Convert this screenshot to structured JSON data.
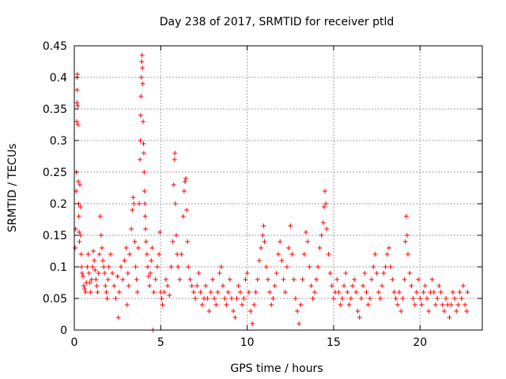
{
  "chart_data": {
    "type": "scatter",
    "title": "Day 238 of 2017, SRMTID for receiver ptld",
    "xlabel": "GPS time / hours",
    "ylabel": "SRMTID / TECUs",
    "xlim": [
      0,
      23.6
    ],
    "ylim": [
      0,
      0.45
    ],
    "xticks": [
      0,
      5,
      10,
      15,
      20
    ],
    "xtick_labels": [
      "0",
      "5",
      "10",
      "15",
      "20"
    ],
    "yticks": [
      0,
      0.05,
      0.1,
      0.15,
      0.2,
      0.25,
      0.3,
      0.35,
      0.4,
      0.45
    ],
    "ytick_labels": [
      "0",
      "0.05",
      "0.1",
      "0.15",
      "0.2",
      "0.25",
      "0.3",
      "0.35",
      "0.4",
      "0.45"
    ],
    "grid": true,
    "marker": "+",
    "color": "#ff0000",
    "series": [
      {
        "name": "SRMTID",
        "points": [
          [
            0.05,
            0.13
          ],
          [
            0.08,
            0.16
          ],
          [
            0.1,
            0.22
          ],
          [
            0.12,
            0.25
          ],
          [
            0.14,
            0.33
          ],
          [
            0.15,
            0.36
          ],
          [
            0.16,
            0.38
          ],
          [
            0.17,
            0.4
          ],
          [
            0.18,
            0.405
          ],
          [
            0.2,
            0.355
          ],
          [
            0.22,
            0.325
          ],
          [
            0.23,
            0.235
          ],
          [
            0.25,
            0.2
          ],
          [
            0.26,
            0.18
          ],
          [
            0.28,
            0.155
          ],
          [
            0.3,
            0.14
          ],
          [
            0.32,
            0.23
          ],
          [
            0.34,
            0.195
          ],
          [
            0.36,
            0.15
          ],
          [
            0.4,
            0.12
          ],
          [
            0.42,
            0.1
          ],
          [
            0.45,
            0.09
          ],
          [
            0.5,
            0.085
          ],
          [
            0.55,
            0.07
          ],
          [
            0.6,
            0.065
          ],
          [
            0.65,
            0.06
          ],
          [
            0.7,
            0.075
          ],
          [
            0.75,
            0.1
          ],
          [
            0.8,
            0.12
          ],
          [
            0.85,
            0.09
          ],
          [
            0.9,
            0.075
          ],
          [
            0.95,
            0.06
          ],
          [
            1.0,
            0.08
          ],
          [
            1.05,
            0.1
          ],
          [
            1.1,
            0.125
          ],
          [
            1.15,
            0.11
          ],
          [
            1.2,
            0.095
          ],
          [
            1.25,
            0.08
          ],
          [
            1.3,
            0.07
          ],
          [
            1.35,
            0.06
          ],
          [
            1.4,
            0.09
          ],
          [
            1.45,
            0.12
          ],
          [
            1.5,
            0.18
          ],
          [
            1.55,
            0.15
          ],
          [
            1.6,
            0.13
          ],
          [
            1.65,
            0.11
          ],
          [
            1.7,
            0.1
          ],
          [
            1.75,
            0.09
          ],
          [
            1.8,
            0.07
          ],
          [
            1.85,
            0.06
          ],
          [
            1.9,
            0.05
          ],
          [
            1.95,
            0.08
          ],
          [
            2.0,
            0.1
          ],
          [
            2.1,
            0.12
          ],
          [
            2.2,
            0.09
          ],
          [
            2.3,
            0.07
          ],
          [
            2.4,
            0.05
          ],
          [
            2.5,
            0.085
          ],
          [
            2.55,
            0.02
          ],
          [
            2.6,
            0.06
          ],
          [
            2.7,
            0.1
          ],
          [
            2.8,
            0.08
          ],
          [
            2.9,
            0.11
          ],
          [
            3.0,
            0.13
          ],
          [
            3.05,
            0.04
          ],
          [
            3.1,
            0.09
          ],
          [
            3.15,
            0.07
          ],
          [
            3.2,
            0.12
          ],
          [
            3.3,
            0.16
          ],
          [
            3.35,
            0.19
          ],
          [
            3.4,
            0.21
          ],
          [
            3.45,
            0.2
          ],
          [
            3.5,
            0.14
          ],
          [
            3.55,
            0.1
          ],
          [
            3.6,
            0.08
          ],
          [
            3.65,
            0.06
          ],
          [
            3.7,
            0.13
          ],
          [
            3.75,
            0.2
          ],
          [
            3.8,
            0.27
          ],
          [
            3.82,
            0.3
          ],
          [
            3.84,
            0.34
          ],
          [
            3.86,
            0.37
          ],
          [
            3.88,
            0.4
          ],
          [
            3.9,
            0.425
          ],
          [
            3.92,
            0.435
          ],
          [
            3.94,
            0.415
          ],
          [
            3.96,
            0.39
          ],
          [
            3.98,
            0.33
          ],
          [
            4.0,
            0.295
          ],
          [
            4.02,
            0.28
          ],
          [
            4.04,
            0.25
          ],
          [
            4.06,
            0.22
          ],
          [
            4.08,
            0.2
          ],
          [
            4.1,
            0.18
          ],
          [
            4.12,
            0.16
          ],
          [
            4.15,
            0.14
          ],
          [
            4.2,
            0.12
          ],
          [
            4.25,
            0.1
          ],
          [
            4.3,
            0.085
          ],
          [
            4.35,
            0.07
          ],
          [
            4.4,
            0.09
          ],
          [
            4.45,
            0.11
          ],
          [
            4.5,
            0.13
          ],
          [
            4.55,
            0.0
          ],
          [
            4.6,
            0.06
          ],
          [
            4.7,
            0.08
          ],
          [
            4.8,
            0.1
          ],
          [
            4.9,
            0.12
          ],
          [
            4.95,
            0.155
          ],
          [
            5.0,
            0.06
          ],
          [
            5.05,
            0.05
          ],
          [
            5.1,
            0.04
          ],
          [
            5.2,
            0.06
          ],
          [
            5.3,
            0.08
          ],
          [
            5.4,
            0.07
          ],
          [
            5.5,
            0.055
          ],
          [
            5.6,
            0.1
          ],
          [
            5.7,
            0.14
          ],
          [
            5.75,
            0.23
          ],
          [
            5.8,
            0.27
          ],
          [
            5.82,
            0.28
          ],
          [
            5.85,
            0.2
          ],
          [
            5.9,
            0.15
          ],
          [
            5.95,
            0.12
          ],
          [
            6.0,
            0.1
          ],
          [
            6.1,
            0.08
          ],
          [
            6.2,
            0.12
          ],
          [
            6.3,
            0.18
          ],
          [
            6.35,
            0.22
          ],
          [
            6.4,
            0.235
          ],
          [
            6.45,
            0.24
          ],
          [
            6.5,
            0.19
          ],
          [
            6.55,
            0.14
          ],
          [
            6.6,
            0.1
          ],
          [
            6.7,
            0.08
          ],
          [
            6.8,
            0.07
          ],
          [
            6.9,
            0.06
          ],
          [
            7.0,
            0.05
          ],
          [
            7.1,
            0.07
          ],
          [
            7.2,
            0.09
          ],
          [
            7.3,
            0.06
          ],
          [
            7.4,
            0.04
          ],
          [
            7.5,
            0.05
          ],
          [
            7.6,
            0.07
          ],
          [
            7.7,
            0.05
          ],
          [
            7.8,
            0.03
          ],
          [
            7.9,
            0.06
          ],
          [
            8.0,
            0.08
          ],
          [
            8.1,
            0.05
          ],
          [
            8.2,
            0.04
          ],
          [
            8.3,
            0.06
          ],
          [
            8.4,
            0.09
          ],
          [
            8.5,
            0.1
          ],
          [
            8.6,
            0.07
          ],
          [
            8.7,
            0.05
          ],
          [
            8.8,
            0.04
          ],
          [
            8.9,
            0.06
          ],
          [
            9.0,
            0.08
          ],
          [
            9.1,
            0.05
          ],
          [
            9.2,
            0.03
          ],
          [
            9.3,
            0.02
          ],
          [
            9.4,
            0.05
          ],
          [
            9.5,
            0.07
          ],
          [
            9.6,
            0.06
          ],
          [
            9.7,
            0.04
          ],
          [
            9.8,
            0.05
          ],
          [
            9.9,
            0.08
          ],
          [
            10.0,
            0.09
          ],
          [
            10.1,
            0.06
          ],
          [
            10.2,
            0.03
          ],
          [
            10.3,
            0.01
          ],
          [
            10.4,
            0.04
          ],
          [
            10.5,
            0.06
          ],
          [
            10.6,
            0.08
          ],
          [
            10.7,
            0.11
          ],
          [
            10.8,
            0.13
          ],
          [
            10.9,
            0.15
          ],
          [
            10.95,
            0.165
          ],
          [
            11.0,
            0.14
          ],
          [
            11.1,
            0.1
          ],
          [
            11.2,
            0.08
          ],
          [
            11.3,
            0.06
          ],
          [
            11.4,
            0.04
          ],
          [
            11.5,
            0.05
          ],
          [
            11.6,
            0.07
          ],
          [
            11.7,
            0.09
          ],
          [
            11.8,
            0.12
          ],
          [
            11.9,
            0.14
          ],
          [
            12.0,
            0.11
          ],
          [
            12.1,
            0.08
          ],
          [
            12.2,
            0.06
          ],
          [
            12.3,
            0.1
          ],
          [
            12.4,
            0.13
          ],
          [
            12.5,
            0.165
          ],
          [
            12.6,
            0.12
          ],
          [
            12.7,
            0.08
          ],
          [
            12.8,
            0.05
          ],
          [
            12.9,
            0.03
          ],
          [
            13.0,
            0.01
          ],
          [
            13.1,
            0.04
          ],
          [
            13.2,
            0.08
          ],
          [
            13.3,
            0.12
          ],
          [
            13.4,
            0.155
          ],
          [
            13.5,
            0.14
          ],
          [
            13.6,
            0.1
          ],
          [
            13.7,
            0.07
          ],
          [
            13.8,
            0.05
          ],
          [
            13.9,
            0.06
          ],
          [
            14.0,
            0.08
          ],
          [
            14.1,
            0.1
          ],
          [
            14.2,
            0.13
          ],
          [
            14.3,
            0.15
          ],
          [
            14.4,
            0.17
          ],
          [
            14.45,
            0.195
          ],
          [
            14.5,
            0.22
          ],
          [
            14.55,
            0.2
          ],
          [
            14.6,
            0.16
          ],
          [
            14.7,
            0.12
          ],
          [
            14.8,
            0.09
          ],
          [
            14.9,
            0.07
          ],
          [
            15.0,
            0.05
          ],
          [
            15.1,
            0.06
          ],
          [
            15.2,
            0.08
          ],
          [
            15.3,
            0.06
          ],
          [
            15.4,
            0.04
          ],
          [
            15.5,
            0.05
          ],
          [
            15.6,
            0.07
          ],
          [
            15.7,
            0.09
          ],
          [
            15.8,
            0.06
          ],
          [
            15.9,
            0.04
          ],
          [
            16.0,
            0.05
          ],
          [
            16.1,
            0.07
          ],
          [
            16.2,
            0.08
          ],
          [
            16.3,
            0.06
          ],
          [
            16.4,
            0.03
          ],
          [
            16.5,
            0.02
          ],
          [
            16.6,
            0.05
          ],
          [
            16.7,
            0.07
          ],
          [
            16.8,
            0.09
          ],
          [
            16.9,
            0.06
          ],
          [
            17.0,
            0.04
          ],
          [
            17.1,
            0.05
          ],
          [
            17.2,
            0.08
          ],
          [
            17.3,
            0.1
          ],
          [
            17.4,
            0.12
          ],
          [
            17.5,
            0.09
          ],
          [
            17.6,
            0.06
          ],
          [
            17.7,
            0.05
          ],
          [
            17.8,
            0.07
          ],
          [
            17.9,
            0.09
          ],
          [
            18.0,
            0.1
          ],
          [
            18.1,
            0.12
          ],
          [
            18.2,
            0.13
          ],
          [
            18.3,
            0.1
          ],
          [
            18.4,
            0.08
          ],
          [
            18.5,
            0.06
          ],
          [
            18.6,
            0.05
          ],
          [
            18.7,
            0.04
          ],
          [
            18.8,
            0.06
          ],
          [
            18.9,
            0.03
          ],
          [
            19.0,
            0.05
          ],
          [
            19.1,
            0.08
          ],
          [
            19.15,
            0.14
          ],
          [
            19.2,
            0.18
          ],
          [
            19.25,
            0.15
          ],
          [
            19.3,
            0.12
          ],
          [
            19.4,
            0.09
          ],
          [
            19.5,
            0.07
          ],
          [
            19.6,
            0.05
          ],
          [
            19.7,
            0.04
          ],
          [
            19.8,
            0.06
          ],
          [
            19.9,
            0.08
          ],
          [
            20.0,
            0.05
          ],
          [
            20.1,
            0.04
          ],
          [
            20.2,
            0.06
          ],
          [
            20.3,
            0.07
          ],
          [
            20.4,
            0.05
          ],
          [
            20.5,
            0.03
          ],
          [
            20.6,
            0.06
          ],
          [
            20.7,
            0.08
          ],
          [
            20.8,
            0.06
          ],
          [
            20.9,
            0.04
          ],
          [
            21.0,
            0.05
          ],
          [
            21.1,
            0.07
          ],
          [
            21.2,
            0.06
          ],
          [
            21.3,
            0.04
          ],
          [
            21.4,
            0.03
          ],
          [
            21.5,
            0.05
          ],
          [
            21.6,
            0.04
          ],
          [
            21.7,
            0.02
          ],
          [
            21.8,
            0.04
          ],
          [
            21.9,
            0.06
          ],
          [
            22.0,
            0.05
          ],
          [
            22.1,
            0.03
          ],
          [
            22.2,
            0.04
          ],
          [
            22.3,
            0.06
          ],
          [
            22.4,
            0.05
          ],
          [
            22.5,
            0.07
          ],
          [
            22.6,
            0.04
          ],
          [
            22.7,
            0.03
          ],
          [
            22.75,
            0.06
          ]
        ]
      }
    ]
  }
}
